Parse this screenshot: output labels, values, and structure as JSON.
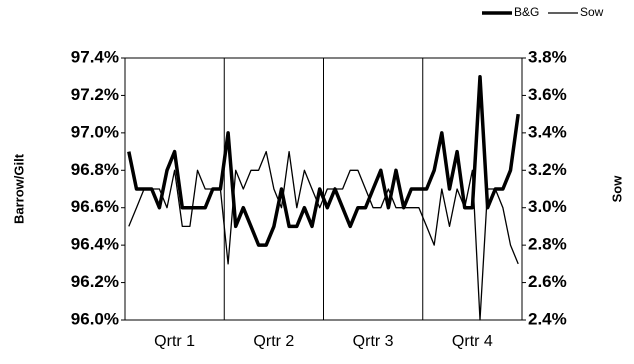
{
  "chart_data": {
    "type": "line",
    "categories": [
      null,
      null,
      null,
      null,
      null,
      null,
      "Qrtr 1",
      null,
      null,
      null,
      null,
      null,
      null,
      null,
      null,
      null,
      null,
      null,
      null,
      "Qrtr 2",
      null,
      null,
      null,
      null,
      null,
      null,
      null,
      null,
      null,
      null,
      null,
      null,
      "Qrtr 3",
      null,
      null,
      null,
      null,
      null,
      null,
      null,
      null,
      null,
      null,
      null,
      null,
      "Qrtr 4",
      null,
      null,
      null,
      null,
      null,
      null
    ],
    "series": [
      {
        "name": "B&G",
        "color": "#000000",
        "axis": "y",
        "values": [
          96.9,
          96.7,
          96.7,
          96.7,
          96.6,
          96.8,
          96.9,
          96.6,
          96.6,
          96.6,
          96.6,
          96.7,
          96.7,
          97.0,
          96.5,
          96.6,
          96.5,
          96.4,
          96.4,
          96.5,
          96.7,
          96.5,
          96.5,
          96.6,
          96.5,
          96.7,
          96.6,
          96.7,
          96.6,
          96.5,
          96.6,
          96.6,
          96.7,
          96.8,
          96.6,
          96.8,
          96.6,
          96.7,
          96.7,
          96.7,
          96.8,
          97.0,
          96.7,
          96.9,
          96.6,
          96.6,
          97.3,
          96.6,
          96.7,
          96.7,
          96.8,
          97.1
        ]
      },
      {
        "name": "Sow",
        "color": "#000000",
        "axis": "y2",
        "values": [
          2.9,
          3.0,
          3.1,
          3.1,
          3.1,
          3.0,
          3.2,
          2.9,
          2.9,
          3.2,
          3.1,
          3.1,
          3.1,
          2.7,
          3.2,
          3.1,
          3.2,
          3.2,
          3.3,
          3.1,
          3.0,
          3.3,
          3.0,
          3.2,
          3.1,
          3.0,
          3.1,
          3.1,
          3.1,
          3.2,
          3.2,
          3.1,
          3.0,
          3.0,
          3.1,
          3.0,
          3.0,
          3.0,
          3.0,
          2.9,
          2.8,
          3.1,
          2.9,
          3.1,
          3.0,
          3.2,
          2.4,
          3.1,
          3.1,
          3.0,
          2.8,
          2.7
        ]
      }
    ],
    "ylabel": "Barrow/Gilt",
    "y2label": "Sow",
    "ylim": [
      96.0,
      97.4
    ],
    "yticks": [
      {
        "value": 96.0,
        "label": "96.0%"
      },
      {
        "value": 96.2,
        "label": "96.2%"
      },
      {
        "value": 96.4,
        "label": "96.4%"
      },
      {
        "value": 96.6,
        "label": "96.6%"
      },
      {
        "value": 96.8,
        "label": "96.8%"
      },
      {
        "value": 97.0,
        "label": "97.0%"
      },
      {
        "value": 97.2,
        "label": "97.2%"
      },
      {
        "value": 97.4,
        "label": "97.4%"
      }
    ],
    "y2lim": [
      2.4,
      3.8
    ],
    "y2ticks": [
      {
        "value": 2.4,
        "label": "2.4%"
      },
      {
        "value": 2.6,
        "label": "2.6%"
      },
      {
        "value": 2.8,
        "label": "2.8%"
      },
      {
        "value": 3.0,
        "label": "3.0%"
      },
      {
        "value": 3.2,
        "label": "3.2%"
      },
      {
        "value": 3.4,
        "label": "3.4%"
      },
      {
        "value": 3.6,
        "label": "3.6%"
      },
      {
        "value": 3.8,
        "label": "3.8%"
      }
    ],
    "legend": "top-right"
  }
}
